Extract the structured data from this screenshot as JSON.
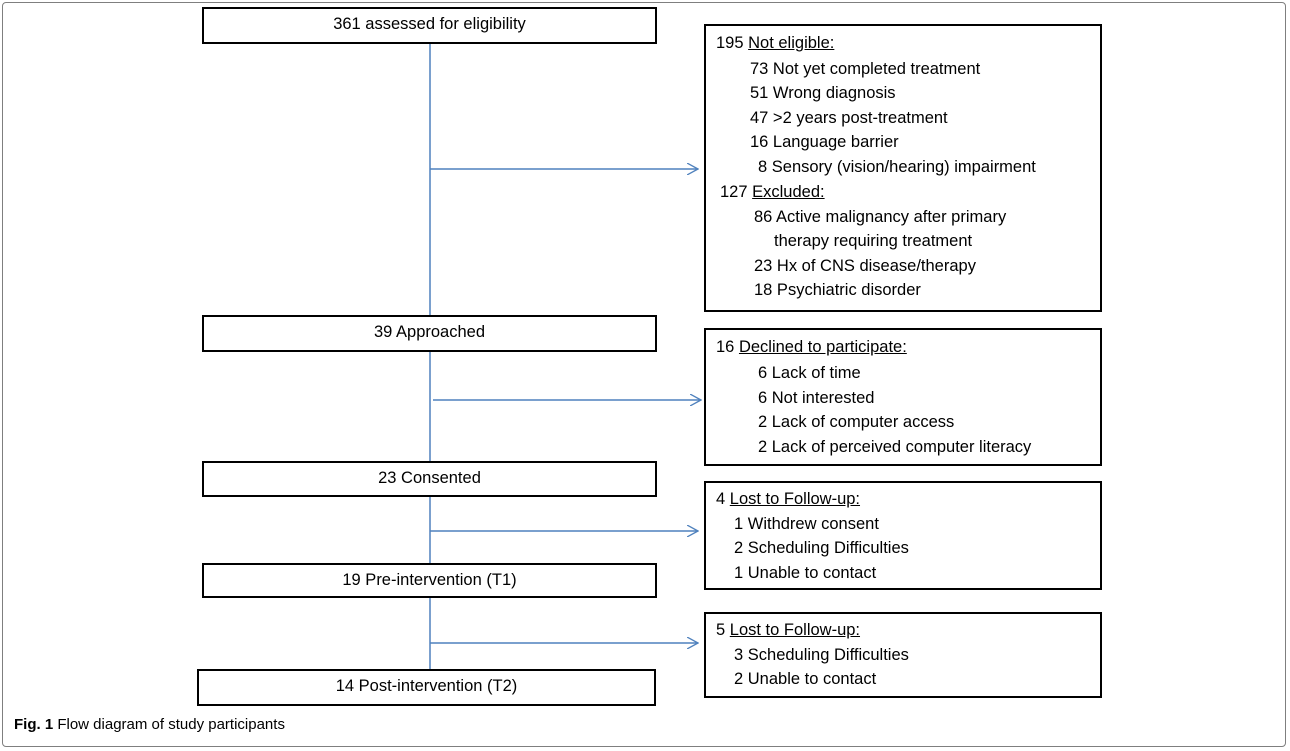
{
  "flow": {
    "assessed": "361 assessed for eligibility",
    "approached": "39 Approached",
    "consented": "23 Consented",
    "pre": "19 Pre-intervention (T1)",
    "post": "14 Post-intervention (T2)"
  },
  "box1": {
    "ne_count": "195",
    "ne_label": "Not eligible:",
    "ne_items": [
      "73 Not yet completed treatment",
      "51 Wrong diagnosis",
      "47 >2 years post-treatment",
      "16 Language barrier",
      "8 Sensory (vision/hearing) impairment"
    ],
    "ex_count": "127",
    "ex_label": "Excluded:",
    "ex_items": [
      "86 Active malignancy after primary",
      "therapy requiring treatment",
      "23  Hx of CNS disease/therapy",
      "18  Psychiatric disorder"
    ]
  },
  "box2": {
    "count": "16",
    "label": "Declined to participate:",
    "items": [
      "6 Lack of time",
      "6 Not interested",
      "2 Lack of computer access",
      "2 Lack of perceived computer literacy"
    ]
  },
  "box3": {
    "count": "4",
    "label": "Lost to Follow-up:",
    "items": [
      "1 Withdrew consent",
      "2 Scheduling Difficulties",
      "1 Unable to contact"
    ]
  },
  "box4": {
    "count": "5",
    "label": "Lost to Follow-up:",
    "items": [
      "3 Scheduling Difficulties",
      "2 Unable to contact"
    ]
  },
  "caption": {
    "prefix": "Fig. 1",
    "text": " Flow diagram of study participants"
  },
  "colors": {
    "arrow": "#4f81bd",
    "border": "#000000"
  }
}
